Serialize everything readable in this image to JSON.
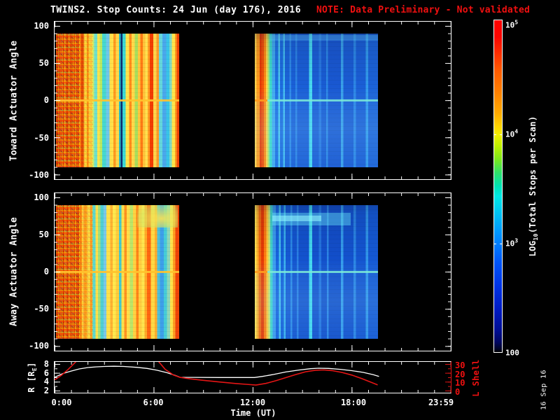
{
  "title": {
    "main": "TWINS2. Stop Counts: 24 Jun (day 176), 2016",
    "note": "NOTE: Data Preliminary - Not validated"
  },
  "colors": {
    "background": "#000000",
    "axis": "#ffffff",
    "note_red": "#f01010",
    "r_curve": "#ffffff",
    "l_curve": "#e51515"
  },
  "xaxis": {
    "label": "Time (UT)",
    "ticks": [
      "0:00",
      "6:00",
      "12:00",
      "18:00",
      "23:59"
    ]
  },
  "panels": {
    "toward": {
      "ylabel": "Toward Actuator Angle",
      "yticks": [
        "100",
        "50",
        "0",
        "-50",
        "-100"
      ]
    },
    "away": {
      "ylabel": "Away Actuator Angle",
      "yticks": [
        "100",
        "50",
        "0",
        "-50",
        "-100"
      ]
    },
    "orbit": {
      "left_label": {
        "pre": "R [R",
        "sub": "E",
        "post": "]"
      },
      "yticks_left": [
        "8",
        "6",
        "4",
        "2"
      ],
      "right_label": "L Shell",
      "yticks_right": [
        "30",
        "20",
        "10",
        "0"
      ]
    }
  },
  "colorbar": {
    "label": {
      "pre": "LOG",
      "sub": "10",
      "post": "(Total Stops per Scan)"
    },
    "ticks": [
      {
        "base": "10",
        "exp": "5"
      },
      {
        "base": "10",
        "exp": "4"
      },
      {
        "base": "10",
        "exp": "3"
      },
      {
        "base": "100",
        "exp": ""
      }
    ],
    "gradient": [
      [
        0.0,
        "#ff0000"
      ],
      [
        0.05,
        "#fb0500"
      ],
      [
        0.1,
        "#ff2e00"
      ],
      [
        0.15,
        "#ff5a00"
      ],
      [
        0.22,
        "#ff8200"
      ],
      [
        0.28,
        "#ffaa00"
      ],
      [
        0.32,
        "#ffd400"
      ],
      [
        0.345,
        "#f2ee00"
      ],
      [
        0.38,
        "#bdf000"
      ],
      [
        0.42,
        "#7ae81e"
      ],
      [
        0.46,
        "#2ee06a"
      ],
      [
        0.5,
        "#00e2b4"
      ],
      [
        0.53,
        "#00e8e4"
      ],
      [
        0.58,
        "#00c4f2"
      ],
      [
        0.635,
        "#009aff"
      ],
      [
        0.672,
        "#0080ff"
      ],
      [
        0.73,
        "#0055f8"
      ],
      [
        0.8,
        "#0034e6"
      ],
      [
        0.875,
        "#001ac0"
      ],
      [
        0.935,
        "#000e92"
      ],
      [
        0.97,
        "#000660"
      ],
      [
        0.99,
        "#000328"
      ],
      [
        1.0,
        "#000000"
      ]
    ]
  },
  "datestamp": "16 Sep 16",
  "chart_data": {
    "type": "heatmap",
    "time_range_hours": [
      0,
      24
    ],
    "angle_range": [
      -100,
      100
    ],
    "colorbar_log10_range": [
      2,
      5
    ],
    "data_gaps_hours": [
      [
        7.56,
        12.13
      ],
      [
        19.6,
        24
      ]
    ],
    "blocks": [
      {
        "id": "toward-block1",
        "t0": 0.1,
        "t1": 7.56,
        "noise": true,
        "zeroline": "rgba(255,195,45,0.9)",
        "stripes": [
          [
            0,
            2.5,
            "#cc3606"
          ],
          [
            2.5,
            4.5,
            "#e8641c"
          ],
          [
            4.5,
            6,
            "#d84010"
          ],
          [
            6,
            8,
            "#ef7a1a"
          ],
          [
            8,
            10,
            "#cc3a08"
          ],
          [
            10,
            12,
            "#e86a14"
          ],
          [
            12,
            14,
            "#d8480a"
          ],
          [
            14,
            16,
            "#ef7518"
          ],
          [
            16,
            18.7,
            "#dd5510"
          ],
          [
            18.7,
            20.5,
            "#ff8c14"
          ],
          [
            20.5,
            22.5,
            "#e03c04"
          ],
          [
            22.5,
            25,
            "#ffd83c"
          ],
          [
            25,
            27,
            "#ffa51e"
          ],
          [
            27,
            29.5,
            "#ffe84e"
          ],
          [
            29.5,
            31,
            "#cdeb70"
          ],
          [
            31,
            33.5,
            "#6fe0cc"
          ],
          [
            33.5,
            35.5,
            "#ffe44a"
          ],
          [
            35.5,
            37.5,
            "#bae960"
          ],
          [
            37.5,
            40.5,
            "#46d8d0"
          ],
          [
            40.5,
            43.5,
            "#6fc8ea"
          ],
          [
            43.5,
            46.5,
            "#ffe14a"
          ],
          [
            46.5,
            48.5,
            "#ff9a1e"
          ],
          [
            48.5,
            51,
            "#ffd84a"
          ],
          [
            51,
            52.5,
            "#28b8c8"
          ],
          [
            52.5,
            54,
            "#0c2a6e"
          ],
          [
            54,
            56.5,
            "#3cd8d4"
          ],
          [
            56.5,
            59.5,
            "#ffe44a"
          ],
          [
            59.5,
            61.5,
            "#ff8c1a"
          ],
          [
            61.5,
            64,
            "#ffd94a"
          ],
          [
            64,
            66.5,
            "#aade5c"
          ],
          [
            66.5,
            68.5,
            "#ffc83c"
          ],
          [
            68.5,
            70.5,
            "#ff7a14"
          ],
          [
            70.5,
            72.5,
            "#ffc23a"
          ],
          [
            72.5,
            74.5,
            "#ffe04e"
          ],
          [
            74.5,
            76,
            "#ff9c22"
          ],
          [
            76,
            79,
            "#f23c02"
          ],
          [
            79,
            81.5,
            "#ffd44a"
          ],
          [
            81.5,
            83.5,
            "#ff9a28"
          ],
          [
            83.5,
            86.5,
            "#63d8dc"
          ],
          [
            86.5,
            89.5,
            "#4aa8ec"
          ],
          [
            89.5,
            92,
            "#38c4e8"
          ],
          [
            92,
            94,
            "#7fd8c4"
          ],
          [
            94,
            96.5,
            "#ffe44a"
          ],
          [
            96.5,
            98,
            "#ff9a1e"
          ],
          [
            98,
            100,
            "#ef4408"
          ]
        ]
      },
      {
        "id": "toward-block2",
        "t0": 12.13,
        "t1": 19.6,
        "zeroline": "rgba(125,235,215,0.85)",
        "zeroline_left": "rgba(255,155,30,0.95)",
        "topband": true,
        "fade": true,
        "stripes": [
          [
            0,
            1.5,
            "#ffd24a"
          ],
          [
            1.5,
            4,
            "#ff9a1c"
          ],
          [
            4,
            5.5,
            "#e83804"
          ],
          [
            5.5,
            7.5,
            "#f25008"
          ],
          [
            7.5,
            9,
            "#ff8c14"
          ],
          [
            9,
            10.5,
            "#ffd44a"
          ],
          [
            10.5,
            12,
            "#a0e87a"
          ],
          [
            12,
            14,
            "#3edcc8"
          ],
          [
            14,
            16.5,
            "#42aaf0"
          ],
          [
            16.5,
            19,
            "#1e72e4"
          ],
          [
            19,
            20.5,
            "#4cc8f0"
          ],
          [
            20.5,
            23,
            "#1c6ce0"
          ],
          [
            23,
            24.5,
            "#44bcf0"
          ],
          [
            24.5,
            28,
            "#1a64da"
          ],
          [
            28,
            29.5,
            "#2e8ae8"
          ],
          [
            29.5,
            33,
            "#1a60d8"
          ],
          [
            33,
            34.5,
            "#2c84e6"
          ],
          [
            34.5,
            44,
            "#1a5ed6"
          ],
          [
            44,
            46.5,
            "#46d8f0"
          ],
          [
            46.5,
            52,
            "#1a5ed6"
          ],
          [
            52,
            54,
            "#2878e2"
          ],
          [
            54,
            58,
            "#195cd4"
          ],
          [
            58,
            59.5,
            "#2c88e6"
          ],
          [
            59.5,
            70,
            "#1958d2"
          ],
          [
            70,
            72,
            "#38a0ea"
          ],
          [
            72,
            80,
            "#1a5cd4"
          ],
          [
            80,
            82,
            "#2c86e6"
          ],
          [
            82,
            90,
            "#1a5ed6"
          ],
          [
            90,
            92,
            "#329aec"
          ],
          [
            92,
            100,
            "#1b62d8"
          ]
        ]
      },
      {
        "id": "away-block1",
        "t0": 0.1,
        "t1": 7.56,
        "noise": true,
        "zeroline": "rgba(255,195,45,0.9)",
        "cloud": true,
        "stripes": [
          [
            0,
            2.5,
            "#d84008"
          ],
          [
            2.5,
            4.5,
            "#ef7318"
          ],
          [
            4.5,
            6.5,
            "#cc3a06"
          ],
          [
            6.5,
            8.5,
            "#e8681a"
          ],
          [
            8.5,
            10.5,
            "#d8480c"
          ],
          [
            10.5,
            12.5,
            "#ef7d1c"
          ],
          [
            12.5,
            14.5,
            "#dd5010"
          ],
          [
            14.5,
            16.5,
            "#e86c16"
          ],
          [
            16.5,
            18.7,
            "#d84c0c"
          ],
          [
            18.7,
            21,
            "#ff9418"
          ],
          [
            21,
            23,
            "#ffd040"
          ],
          [
            23,
            25,
            "#ffa01e"
          ],
          [
            25,
            27.5,
            "#ffe44c"
          ],
          [
            27.5,
            29.5,
            "#ffb42e"
          ],
          [
            29.5,
            32,
            "#5fd8cc"
          ],
          [
            32,
            34,
            "#ffe04a"
          ],
          [
            34,
            36,
            "#9fe080"
          ],
          [
            36,
            38.5,
            "#4fd0d4"
          ],
          [
            38.5,
            41,
            "#79c8e8"
          ],
          [
            41,
            44,
            "#ffe24a"
          ],
          [
            44,
            46,
            "#ffb232"
          ],
          [
            46,
            48.5,
            "#ffe84e"
          ],
          [
            48.5,
            51,
            "#ffcc3c"
          ],
          [
            51,
            53,
            "#46c8cc"
          ],
          [
            53,
            55.5,
            "#ffe04a"
          ],
          [
            55.5,
            57.5,
            "#ff9220"
          ],
          [
            57.5,
            60,
            "#ffdd4a"
          ],
          [
            60,
            62.5,
            "#bce668"
          ],
          [
            62.5,
            65,
            "#ffd242"
          ],
          [
            65,
            67,
            "#ff8518"
          ],
          [
            67,
            69.5,
            "#ffcf40"
          ],
          [
            69.5,
            72,
            "#ffe44e"
          ],
          [
            72,
            74,
            "#ffaa28"
          ],
          [
            74,
            77,
            "#ff6610"
          ],
          [
            77,
            80,
            "#ffd844"
          ],
          [
            80,
            82,
            "#ffae2c"
          ],
          [
            82,
            84.5,
            "#4fc0d8"
          ],
          [
            84.5,
            87.5,
            "#3da0ea"
          ],
          [
            87.5,
            90,
            "#46ccd8"
          ],
          [
            90,
            92.5,
            "#8fd8b8"
          ],
          [
            92.5,
            95,
            "#ffe24a"
          ],
          [
            95,
            97,
            "#ff9e22"
          ],
          [
            97,
            100,
            "#ef4408"
          ]
        ]
      },
      {
        "id": "away-block2",
        "t0": 12.13,
        "t1": 19.6,
        "zeroline": "rgba(125,235,215,0.85)",
        "zeroline_left": "rgba(255,155,30,0.95)",
        "cyanband": true,
        "fade": true,
        "stripes": [
          [
            0,
            1.5,
            "#ffe04e"
          ],
          [
            1.5,
            3,
            "#ffb02a"
          ],
          [
            3,
            5,
            "#f26a10"
          ],
          [
            5,
            7.5,
            "#e83a02"
          ],
          [
            7.5,
            9.5,
            "#ff7c10"
          ],
          [
            9.5,
            11,
            "#ffc83c"
          ],
          [
            11,
            12.5,
            "#bfe87a"
          ],
          [
            12.5,
            14.5,
            "#42d4cc"
          ],
          [
            14.5,
            17,
            "#3c9cee"
          ],
          [
            17,
            19.5,
            "#1764de"
          ],
          [
            19.5,
            21,
            "#46c4f0"
          ],
          [
            21,
            23.5,
            "#1560da"
          ],
          [
            23.5,
            25,
            "#3cb4ee"
          ],
          [
            25,
            29,
            "#1458d4"
          ],
          [
            29,
            30.5,
            "#2c8ae8"
          ],
          [
            30.5,
            34,
            "#1354d0"
          ],
          [
            34,
            35.5,
            "#2a80e4"
          ],
          [
            35.5,
            44,
            "#1352ce"
          ],
          [
            44,
            46.5,
            "#42d8f0"
          ],
          [
            46.5,
            52,
            "#1352ce"
          ],
          [
            52,
            54,
            "#2474e0"
          ],
          [
            54,
            58.5,
            "#1250cc"
          ],
          [
            58.5,
            60,
            "#2c86e6"
          ],
          [
            60,
            70,
            "#124eca"
          ],
          [
            70,
            72,
            "#349cec"
          ],
          [
            72,
            80,
            "#1352ce"
          ],
          [
            80,
            82,
            "#2a84e4"
          ],
          [
            82,
            90,
            "#1354d0"
          ],
          [
            90,
            92,
            "#3096ea"
          ],
          [
            92,
            100,
            "#1458d4"
          ]
        ]
      }
    ],
    "orbit": {
      "r_axis_range": [
        2,
        8
      ],
      "l_axis_range": [
        0,
        30
      ],
      "r_series": [
        [
          0,
          5.0
        ],
        [
          0.5,
          5.85
        ],
        [
          1,
          6.4
        ],
        [
          1.5,
          6.9
        ],
        [
          2,
          7.2
        ],
        [
          2.5,
          7.35
        ],
        [
          3,
          7.45
        ],
        [
          3.6,
          7.5
        ],
        [
          4.2,
          7.45
        ],
        [
          5,
          7.25
        ],
        [
          5.6,
          7.0
        ],
        [
          6.2,
          6.6
        ],
        [
          6.8,
          6.05
        ],
        [
          7.3,
          5.45
        ],
        [
          7.6,
          5.0
        ],
        [
          8.5,
          4.98
        ],
        [
          10,
          4.96
        ],
        [
          11.5,
          4.95
        ],
        [
          12.1,
          4.95
        ],
        [
          12.6,
          5.2
        ],
        [
          13.2,
          5.6
        ],
        [
          14,
          6.2
        ],
        [
          14.8,
          6.65
        ],
        [
          15.5,
          6.95
        ],
        [
          16,
          7.05
        ],
        [
          16.6,
          7.0
        ],
        [
          17.3,
          6.8
        ],
        [
          18,
          6.5
        ],
        [
          18.7,
          6.1
        ],
        [
          19.3,
          5.6
        ],
        [
          19.65,
          5.2
        ]
      ],
      "l_series_segments": [
        [
          [
            0,
            14
          ],
          [
            0.4,
            19
          ],
          [
            0.8,
            25.5
          ],
          [
            1.2,
            33
          ],
          [
            1.35,
            36
          ]
        ],
        [
          [
            6.25,
            36
          ],
          [
            6.7,
            26
          ],
          [
            7.2,
            19.5
          ],
          [
            7.6,
            16.8
          ],
          [
            8.2,
            15.2
          ],
          [
            9,
            13.5
          ],
          [
            10,
            11.6
          ],
          [
            11,
            9.8
          ],
          [
            11.6,
            8.9
          ],
          [
            12.2,
            8.1
          ],
          [
            12.8,
            10
          ],
          [
            13.4,
            13
          ],
          [
            14,
            16.5
          ],
          [
            14.6,
            20
          ],
          [
            15.2,
            23.2
          ],
          [
            15.8,
            25
          ],
          [
            16.3,
            25.4
          ],
          [
            16.8,
            24.6
          ],
          [
            17.4,
            22.5
          ],
          [
            18,
            19.5
          ],
          [
            18.6,
            15.5
          ],
          [
            19.2,
            11
          ],
          [
            19.57,
            8.2
          ]
        ]
      ]
    }
  }
}
